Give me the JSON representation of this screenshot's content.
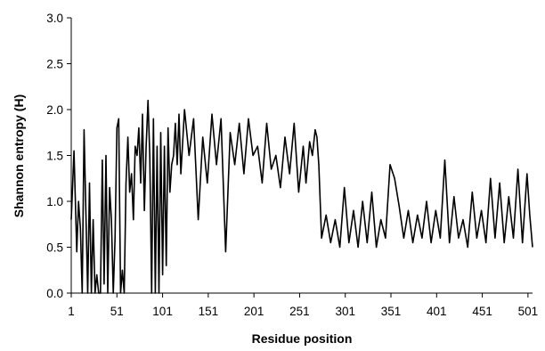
{
  "chart_data": {
    "type": "line",
    "xlabel": "Residue position",
    "ylabel": "Shannon entropy (H)",
    "xlim": [
      1,
      506
    ],
    "ylim": [
      0,
      3.0
    ],
    "x_ticks": [
      "1",
      "51",
      "101",
      "151",
      "201",
      "251",
      "301",
      "351",
      "401",
      "451",
      "501"
    ],
    "y_ticks": [
      "0.0",
      "0.5",
      "1.0",
      "1.5",
      "2.0",
      "2.5",
      "3.0"
    ],
    "grid": false,
    "legend": "none",
    "line_color": "#000000",
    "series": [
      {
        "x": [
          1,
          4,
          7,
          9,
          11,
          13,
          15,
          17,
          19,
          21,
          23,
          25,
          27,
          29,
          31,
          33,
          35,
          37,
          39,
          41,
          43,
          45,
          47,
          49,
          51,
          53,
          55,
          57,
          59,
          61,
          63,
          65,
          67,
          69,
          71,
          73,
          75,
          77,
          79,
          81,
          83,
          85,
          87,
          89,
          91,
          93,
          95,
          97,
          99,
          101,
          103,
          105,
          107,
          109,
          111,
          113,
          115,
          117,
          119,
          121,
          125,
          130,
          135,
          140,
          145,
          150,
          155,
          160,
          165,
          170,
          175,
          180,
          185,
          190,
          195,
          200,
          205,
          210,
          215,
          220,
          225,
          230,
          235,
          240,
          245,
          250,
          255,
          258,
          262,
          265,
          268,
          270,
          272,
          275,
          280,
          285,
          290,
          295,
          300,
          305,
          310,
          315,
          320,
          325,
          330,
          335,
          340,
          345,
          350,
          355,
          360,
          365,
          370,
          375,
          380,
          385,
          390,
          395,
          400,
          405,
          410,
          415,
          420,
          425,
          430,
          435,
          440,
          445,
          450,
          455,
          460,
          465,
          470,
          475,
          480,
          485,
          490,
          495,
          500,
          503,
          506
        ],
        "values": [
          0.8,
          1.55,
          0.45,
          1.0,
          0.7,
          0.0,
          1.78,
          0.9,
          0.0,
          1.2,
          0.0,
          0.8,
          0.0,
          0.2,
          0.0,
          0.0,
          1.45,
          0.1,
          1.5,
          0.0,
          1.15,
          0.8,
          0.0,
          0.6,
          1.8,
          1.9,
          0.0,
          0.25,
          0.0,
          1.2,
          1.7,
          1.1,
          1.3,
          0.8,
          1.6,
          1.5,
          1.8,
          1.2,
          1.95,
          0.9,
          1.6,
          2.1,
          1.5,
          0.0,
          1.9,
          0.0,
          1.6,
          0.0,
          1.75,
          0.2,
          1.6,
          0.3,
          1.8,
          1.1,
          1.4,
          1.5,
          1.85,
          1.4,
          1.95,
          1.3,
          2.0,
          1.5,
          1.9,
          0.8,
          1.7,
          1.2,
          1.95,
          1.4,
          1.9,
          0.45,
          1.75,
          1.4,
          1.85,
          1.3,
          1.9,
          1.5,
          1.6,
          1.2,
          1.85,
          1.35,
          1.5,
          1.15,
          1.7,
          1.3,
          1.85,
          1.1,
          1.6,
          1.2,
          1.65,
          1.5,
          1.78,
          1.7,
          1.4,
          0.6,
          0.85,
          0.55,
          0.8,
          0.5,
          1.15,
          0.55,
          0.9,
          0.5,
          1.0,
          0.55,
          1.1,
          0.5,
          0.8,
          0.6,
          1.4,
          1.25,
          0.95,
          0.6,
          0.9,
          0.55,
          0.85,
          0.6,
          1.0,
          0.55,
          0.9,
          0.6,
          1.45,
          0.55,
          1.05,
          0.6,
          0.8,
          0.5,
          1.1,
          0.6,
          0.9,
          0.55,
          1.25,
          0.6,
          1.2,
          0.55,
          1.05,
          0.6,
          1.35,
          0.55,
          1.3,
          0.85,
          0.5
        ]
      }
    ]
  }
}
